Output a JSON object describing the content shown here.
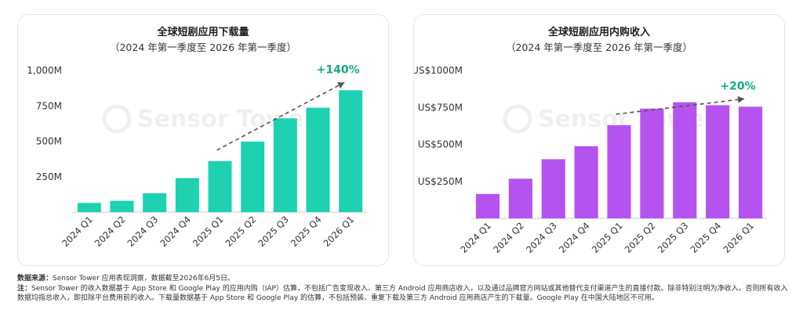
{
  "colors": {
    "downloads_bar": "#1dd1b1",
    "downloads_growth": "#13a889",
    "revenue_bar": "#b553f0",
    "revenue_growth": "#13a889",
    "trend_arrow": "#555555",
    "axis": "#c8c8c8",
    "watermark": "#f0f0f0"
  },
  "watermark": "Sensor Tower",
  "chart_data": [
    {
      "type": "bar",
      "title": "全球短剧应用下载量",
      "subtitle": "（2024 年第一季度至 2026 年第一季度）",
      "categories": [
        "2024 Q1",
        "2024 Q2",
        "2024 Q3",
        "2024 Q4",
        "2025 Q1",
        "2025 Q2",
        "2025 Q3",
        "2025 Q4",
        "2026 Q1"
      ],
      "values": [
        65,
        80,
        133,
        240,
        360,
        498,
        662,
        737,
        860
      ],
      "ylim": [
        0,
        1000
      ],
      "yticks": [
        250,
        500,
        750,
        1000
      ],
      "ytick_labels": [
        "250M",
        "500M",
        "750M",
        "1,000M"
      ],
      "xlabel": "",
      "ylabel": "",
      "grid": false,
      "annotation": {
        "text": "+140%",
        "from_index": 4,
        "to_index": 8
      }
    },
    {
      "type": "bar",
      "title": "全球短剧应用内购收入",
      "subtitle": "（2024 年第一季度至 2026 年第一季度）",
      "categories": [
        "2024 Q1",
        "2024 Q2",
        "2024 Q3",
        "2024 Q4",
        "2025 Q1",
        "2025 Q2",
        "2025 Q3",
        "2025 Q4",
        "2026 Q1"
      ],
      "values": [
        165,
        268,
        400,
        488,
        630,
        742,
        785,
        765,
        755
      ],
      "ylim": [
        0,
        1000
      ],
      "yticks": [
        250,
        500,
        750,
        1000
      ],
      "ytick_labels": [
        "US$250M",
        "US$500M",
        "US$750M",
        "US$1000M"
      ],
      "xlabel": "",
      "ylabel": "",
      "grid": false,
      "annotation": {
        "text": "+20%",
        "from_index": 4,
        "to_index": 8
      }
    }
  ],
  "footnote": {
    "source_label": "数据来源：",
    "source_text": "Sensor Tower 应用表现洞察，数据截至2026年6月5日。",
    "note_label": "注：",
    "note_text": "Sensor Tower 的收入数据基于 App Store 和 Google Play 的应用内购（IAP）估算，不包括广告变现收入、第三方 Android 应用商店收入，以及通过品牌官方网站或其他替代支付渠道产生的直接付款。除非特别注明为净收入，否则所有收入数据均指总收入，即扣除平台费用前的收入。下载量数据基于 App Store 和 Google Play 的估算，不包括预装、重复下载及第三方 Android 应用商店产生的下载量。Google Play 在中国大陆地区不可用。"
  }
}
